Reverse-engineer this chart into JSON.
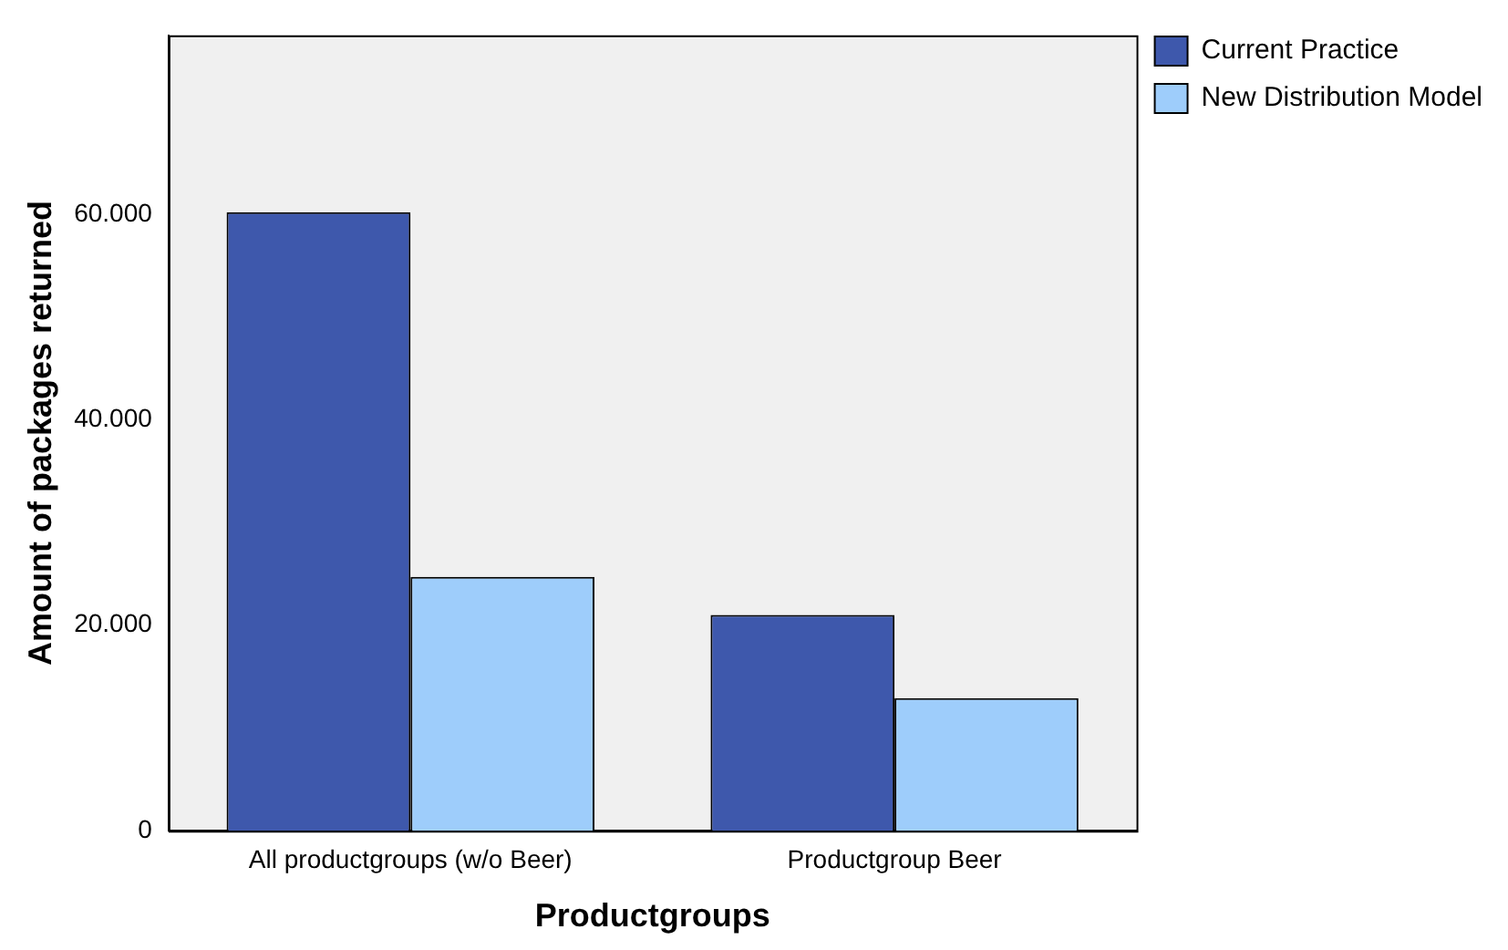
{
  "chart_data": {
    "type": "bar",
    "xlabel": "Productgroups",
    "ylabel": "Amount of packages returned",
    "categories": [
      "All productgroups (w/o Beer)",
      "Productgroup Beer"
    ],
    "series": [
      {
        "name": "Current Practice",
        "color": "#3e58ac",
        "values": [
          60200,
          21000
        ]
      },
      {
        "name": "New Distribution Model",
        "color": "#9ecdfb",
        "values": [
          24700,
          12900
        ]
      }
    ],
    "ylim": [
      0,
      77400
    ],
    "yticks": [
      0,
      {
        "value": 20000,
        "label": "20.000"
      },
      {
        "value": 40000,
        "label": "40.000"
      },
      {
        "value": 60000,
        "label": "60.000"
      }
    ],
    "grid": false,
    "legend": "top right"
  }
}
